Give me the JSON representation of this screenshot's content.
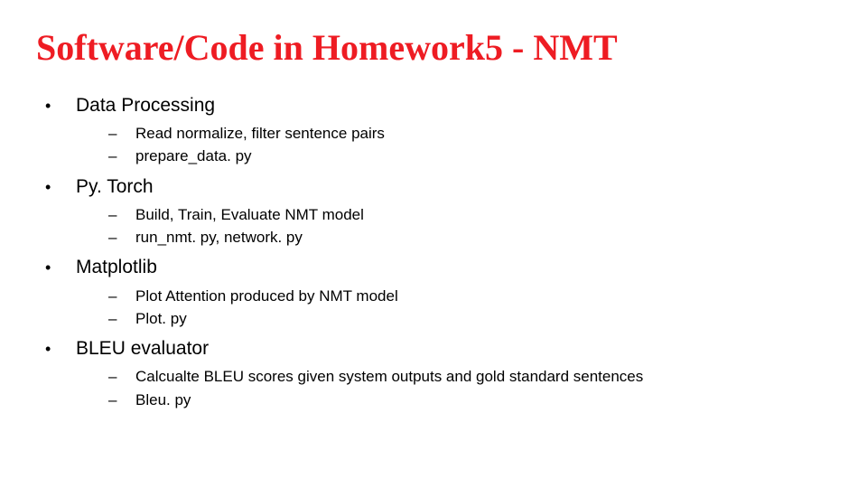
{
  "title_color": "#ee1c23",
  "title_fontfamily": "Georgia, 'Times New Roman', serif",
  "title_fontsize": 40,
  "body_fontfamily": "Arial, Helvetica, sans-serif",
  "body_color": "#000000",
  "background_color": "#ffffff",
  "bullet_fontsize": 21,
  "sub_fontsize": 17,
  "title": "Software/Code in Homework5 - NMT",
  "sections": [
    {
      "heading": "Data Processing",
      "items": [
        "Read normalize, filter sentence pairs",
        "prepare_data. py"
      ]
    },
    {
      "heading": "Py. Torch",
      "items": [
        "Build, Train, Evaluate NMT model",
        "run_nmt. py, network. py"
      ]
    },
    {
      "heading": "Matplotlib",
      "items": [
        "Plot Attention produced by NMT model",
        "Plot. py"
      ]
    },
    {
      "heading": "BLEU evaluator",
      "items": [
        "Calcualte BLEU scores given system outputs and gold standard sentences",
        "Bleu. py"
      ]
    }
  ]
}
